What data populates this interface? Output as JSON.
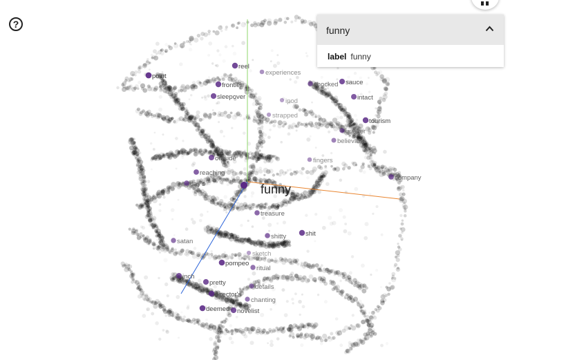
{
  "help_label": "?",
  "selected": {
    "title": "funny",
    "field_label": "label",
    "field_value": "funny"
  },
  "focus_word": "funny",
  "colors": {
    "accent": "#5b2a86",
    "dot": "#111111",
    "axis_x": "#e9852f",
    "axis_y": "#8fd76b",
    "axis_z": "#2962d9"
  },
  "neighbors": [
    {
      "text": "point",
      "tone": 0.9
    },
    {
      "text": "reel",
      "tone": 0.8
    },
    {
      "text": "experiences",
      "tone": 0.35
    },
    {
      "text": "frontier",
      "tone": 0.8
    },
    {
      "text": "sleepover",
      "tone": 0.75
    },
    {
      "text": "ipod",
      "tone": 0.25
    },
    {
      "text": "strapped",
      "tone": 0.25
    },
    {
      "text": "shocked",
      "tone": 0.55
    },
    {
      "text": "sauce",
      "tone": 0.75
    },
    {
      "text": "intact",
      "tone": 0.7
    },
    {
      "text": "tourism",
      "tone": 0.8
    },
    {
      "text": "quaker",
      "tone": 0.5
    },
    {
      "text": "believable",
      "tone": 0.45
    },
    {
      "text": "fingers",
      "tone": 0.35
    },
    {
      "text": "company",
      "tone": 0.65
    },
    {
      "text": "outside",
      "tone": 0.7
    },
    {
      "text": "reaching",
      "tone": 0.65
    },
    {
      "text": "day's",
      "tone": 0.6
    },
    {
      "text": "treasure",
      "tone": 0.6
    },
    {
      "text": "shitty",
      "tone": 0.6
    },
    {
      "text": "shit",
      "tone": 0.8
    },
    {
      "text": "satan",
      "tone": 0.55
    },
    {
      "text": "sketch",
      "tone": 0.25
    },
    {
      "text": "pompeo",
      "tone": 0.85
    },
    {
      "text": "ritual",
      "tone": 0.55
    },
    {
      "text": "inch",
      "tone": 0.7
    },
    {
      "text": "pretty",
      "tone": 0.75
    },
    {
      "text": "details",
      "tone": 0.5
    },
    {
      "text": "director's",
      "tone": 0.8
    },
    {
      "text": "chanting",
      "tone": 0.5
    },
    {
      "text": "deemed",
      "tone": 0.85
    },
    {
      "text": "novelist",
      "tone": 0.75
    }
  ]
}
